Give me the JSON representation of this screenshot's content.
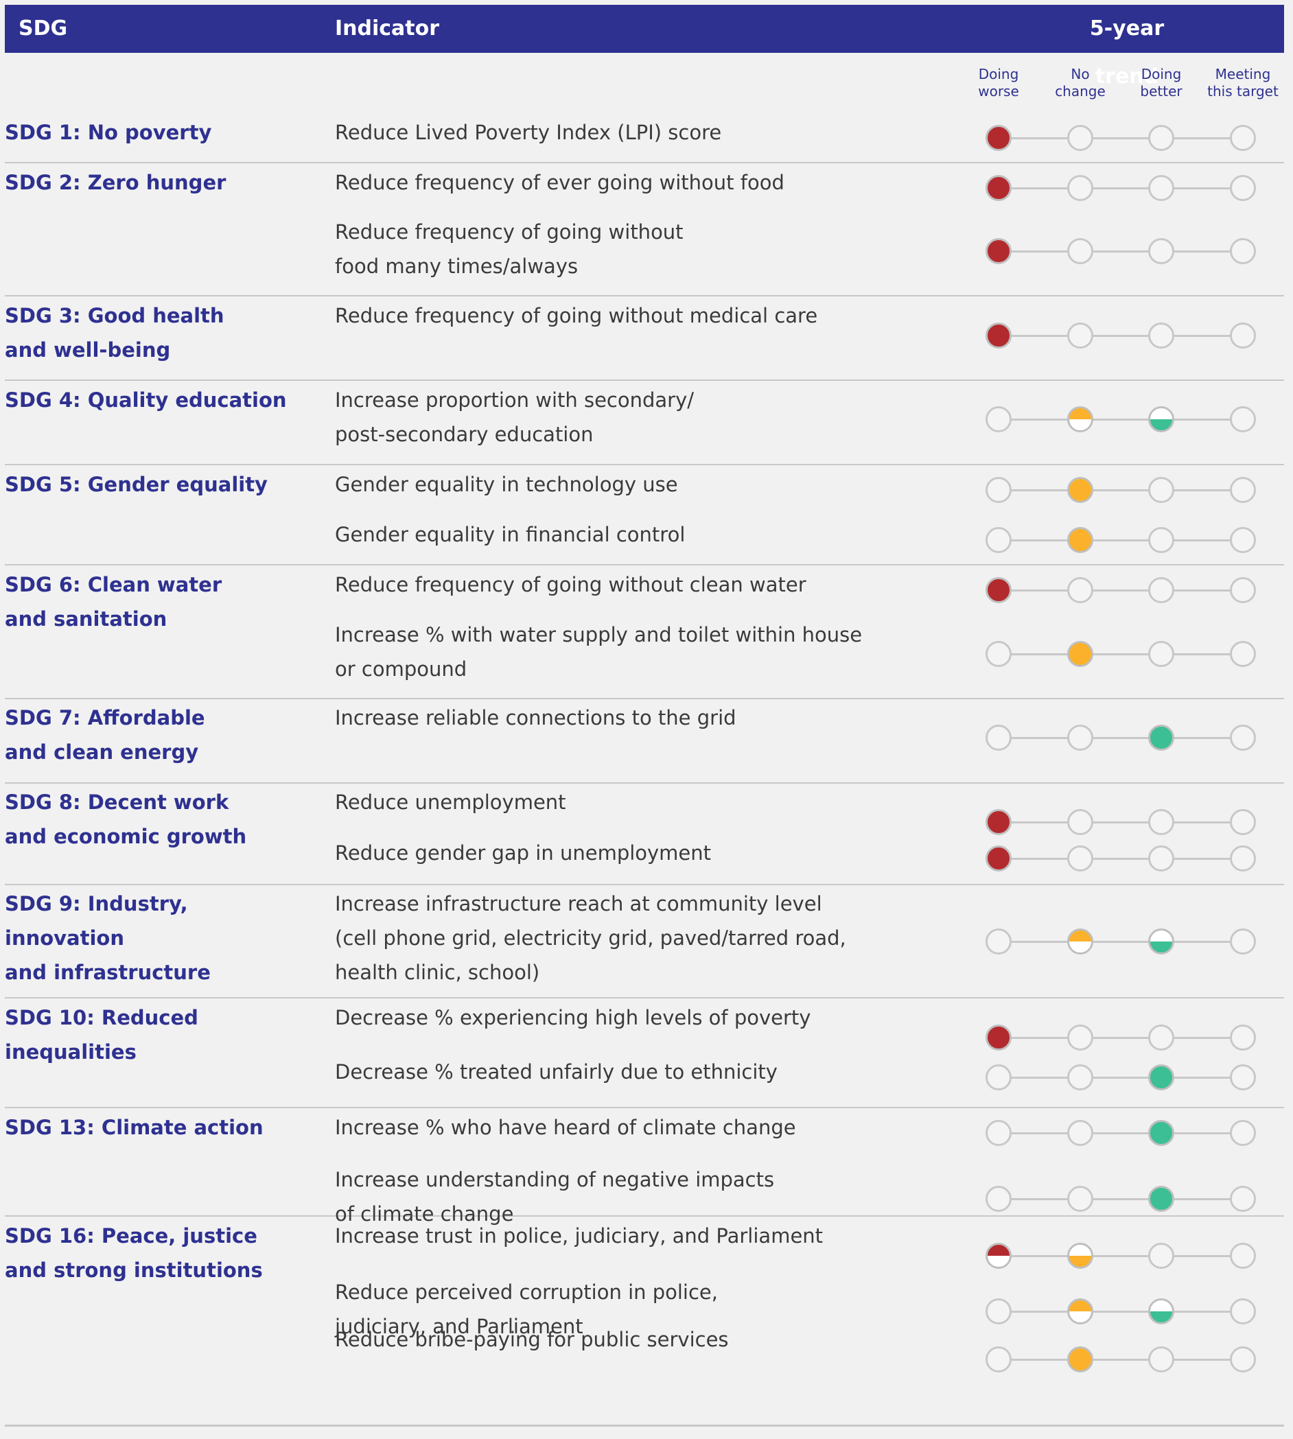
{
  "header": {
    "sdg_col": "SDG",
    "indicator_col": "Indicator",
    "trend_col": "5-year trend"
  },
  "trend_columns": [
    {
      "line1": "Doing",
      "line2": "worse"
    },
    {
      "line1": "No",
      "line2": "change"
    },
    {
      "line1": "Doing",
      "line2": "better"
    },
    {
      "line1": "Meeting",
      "line2": "this target"
    }
  ],
  "colors": {
    "header_bg": "#2e3190",
    "sdg_text": "#2e3190",
    "worse": "#b22a2e",
    "no_change": "#fbb12b",
    "better": "#3cbf94"
  },
  "groups": [
    {
      "sdg": [
        "SDG 1: No poverty"
      ],
      "rows": [
        {
          "text": [
            "Reduce Lived Poverty Index (LPI) score"
          ],
          "marks": [
            [
              "worse",
              "full"
            ]
          ]
        }
      ]
    },
    {
      "sdg": [
        "SDG 2: Zero hunger"
      ],
      "rows": [
        {
          "text": [
            "Reduce frequency of ever going without food"
          ],
          "marks": [
            [
              "worse",
              "full"
            ]
          ]
        },
        {
          "text": [
            "Reduce frequency of going without",
            "food many times/always"
          ],
          "marks": [
            [
              "worse",
              "full"
            ]
          ]
        }
      ]
    },
    {
      "sdg": [
        "SDG 3: Good health",
        "and well-being"
      ],
      "rows": [
        {
          "text": [
            "Reduce frequency of going without medical care"
          ],
          "marks": [
            [
              "worse",
              "full"
            ]
          ]
        }
      ]
    },
    {
      "sdg": [
        "SDG 4: Quality education"
      ],
      "rows": [
        {
          "text": [
            "Increase proportion with secondary/",
            "post-secondary education"
          ],
          "marks": [
            [
              "no_change",
              "top"
            ],
            [
              "better",
              "bottom"
            ]
          ]
        }
      ]
    },
    {
      "sdg": [
        "SDG 5: Gender equality"
      ],
      "rows": [
        {
          "text": [
            "Gender equality in technology use"
          ],
          "marks": [
            [
              "no_change",
              "full"
            ]
          ]
        },
        {
          "text": [
            "Gender equality in financial control"
          ],
          "marks": [
            [
              "no_change",
              "full"
            ]
          ]
        }
      ]
    },
    {
      "sdg": [
        "SDG 6: Clean water",
        "and sanitation"
      ],
      "rows": [
        {
          "text": [
            "Reduce frequency of going without clean water"
          ],
          "marks": [
            [
              "worse",
              "full"
            ]
          ]
        },
        {
          "text": [
            "Increase % with water supply and toilet within house",
            "or compound"
          ],
          "marks": [
            [
              "no_change",
              "full"
            ]
          ]
        }
      ]
    },
    {
      "sdg": [
        "SDG 7: Affordable",
        "and clean energy"
      ],
      "rows": [
        {
          "text": [
            "Increase reliable connections to the grid"
          ],
          "marks": [
            [
              "better",
              "full"
            ]
          ]
        }
      ]
    },
    {
      "sdg": [
        "SDG 8: Decent work",
        "and economic growth"
      ],
      "rows": [
        {
          "text": [
            "Reduce unemployment"
          ],
          "marks": [
            [
              "worse",
              "full"
            ]
          ]
        },
        {
          "text": [
            "Reduce gender gap in unemployment"
          ],
          "marks": [
            [
              "worse",
              "full"
            ]
          ]
        }
      ]
    },
    {
      "sdg": [
        "SDG 9: Industry,",
        "innovation",
        "and infrastructure"
      ],
      "rows": [
        {
          "text": [
            "Increase infrastructure reach at community level",
            "(cell phone grid, electricity grid, paved/tarred road,",
            "health clinic, school)"
          ],
          "marks": [
            [
              "no_change",
              "top"
            ],
            [
              "better",
              "bottom"
            ]
          ]
        }
      ]
    },
    {
      "sdg": [
        "SDG 10: Reduced",
        "inequalities"
      ],
      "rows": [
        {
          "text": [
            "Decrease % experiencing high levels of poverty"
          ],
          "marks": [
            [
              "worse",
              "full"
            ]
          ]
        },
        {
          "text": [
            "Decrease % treated unfairly due to ethnicity"
          ],
          "marks": [
            [
              "better",
              "full"
            ]
          ]
        }
      ]
    },
    {
      "sdg": [
        "SDG 13: Climate action"
      ],
      "rows": [
        {
          "text": [
            "Increase % who have heard of climate change"
          ],
          "marks": [
            [
              "better",
              "full"
            ]
          ]
        },
        {
          "text": [
            "Increase understanding of negative impacts",
            "of climate change"
          ],
          "marks": [
            [
              "better",
              "full"
            ]
          ]
        }
      ]
    },
    {
      "sdg": [
        "SDG 16: Peace, justice",
        "and strong institutions"
      ],
      "rows": [
        {
          "text": [
            "Increase trust in police, judiciary, and Parliament"
          ],
          "marks": [
            [
              "worse",
              "top"
            ],
            [
              "no_change",
              "bottom"
            ]
          ]
        },
        {
          "text": [
            "Reduce perceived corruption in police,",
            "judiciary, and Parliament"
          ],
          "marks": [
            [
              "no_change",
              "top"
            ],
            [
              "better",
              "bottom"
            ]
          ]
        },
        {
          "text": [
            "Reduce bribe-paying for public services"
          ],
          "marks": [
            [
              "no_change",
              "full"
            ]
          ]
        }
      ]
    }
  ]
}
